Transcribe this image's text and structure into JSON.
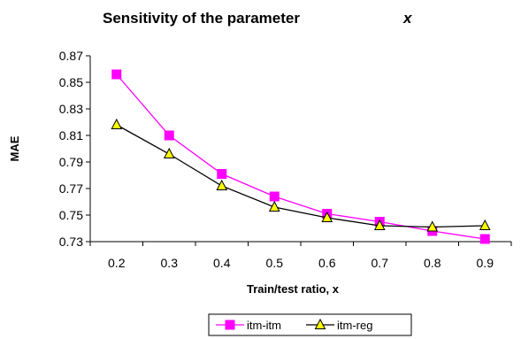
{
  "chart_data": {
    "type": "line",
    "title": "Sensitivity of the parameter",
    "title_variable": "x",
    "xlabel": "Train/test ratio, x",
    "ylabel": "MAE",
    "categories": [
      "0.2",
      "0.3",
      "0.4",
      "0.5",
      "0.6",
      "0.7",
      "0.8",
      "0.9"
    ],
    "yticks": [
      "0.73",
      "0.75",
      "0.77",
      "0.79",
      "0.81",
      "0.83",
      "0.85",
      "0.87"
    ],
    "ylim": [
      0.73,
      0.87
    ],
    "grid": false,
    "legend_position": "bottom",
    "series": [
      {
        "name": "itm-itm",
        "color": "#ff00ff",
        "marker": "square",
        "values": [
          0.856,
          0.81,
          0.781,
          0.764,
          0.751,
          0.745,
          0.738,
          0.732
        ]
      },
      {
        "name": "itm-reg",
        "color": "#000000",
        "marker": "triangle",
        "marker_fill": "#ffff00",
        "values": [
          0.818,
          0.796,
          0.772,
          0.756,
          0.748,
          0.742,
          0.741,
          0.742
        ]
      }
    ]
  }
}
